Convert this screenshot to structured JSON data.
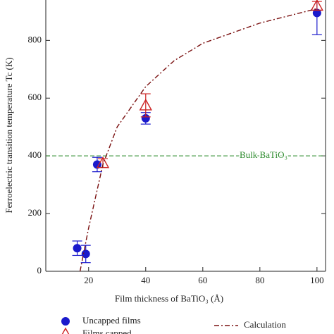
{
  "chart_data": {
    "type": "scatter",
    "xlabel": "Film thickness of BaTiO₃ (Å)",
    "ylabel": "Ferroelectric transition temperature Tc (K)",
    "xlim": [
      5,
      103
    ],
    "xticks": [
      20,
      40,
      60,
      80,
      100
    ],
    "ylim": [
      0,
      940
    ],
    "yticks": [
      0,
      200,
      400,
      600,
      800
    ],
    "series": [
      {
        "name": "Uncapped films",
        "color": "#1a1acc",
        "marker": "circle",
        "x": [
          16,
          19,
          23,
          40,
          100
        ],
        "values": [
          80,
          60,
          370,
          530,
          895
        ],
        "errors": [
          25,
          30,
          25,
          20,
          75
        ]
      },
      {
        "name": "Films capped",
        "color": "#cc2222",
        "marker": "triangle",
        "x": [
          25,
          40,
          100
        ],
        "values": [
          375,
          575,
          920
        ],
        "errors": [
          15,
          40,
          15
        ]
      },
      {
        "name": "Calculation",
        "color": "#7a1010",
        "marker": "line",
        "x": [
          17,
          20,
          25,
          30,
          40,
          50,
          60,
          80,
          100
        ],
        "values": [
          0,
          150,
          370,
          500,
          640,
          730,
          790,
          860,
          910
        ]
      }
    ],
    "reference_line": {
      "value": 400,
      "label": "Bulk BaTiO₃",
      "color": "#2a8a2a"
    }
  }
}
